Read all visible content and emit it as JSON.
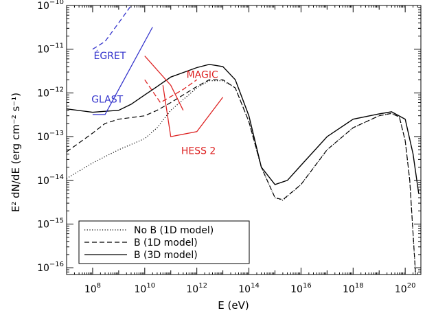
{
  "chart_data": {
    "type": "line",
    "xlabel": "E (eV)",
    "ylabel": "E² dN/dE (erg cm⁻² s⁻¹)",
    "xscale": "log",
    "yscale": "log",
    "xlim": [
      10000000.0,
      4e+20
    ],
    "ylim": [
      7e-17,
      1e-10
    ],
    "x_ticks": [
      {
        "value": 100000000.0,
        "base": "10",
        "exp": "8"
      },
      {
        "value": 10000000000.0,
        "base": "10",
        "exp": "10"
      },
      {
        "value": 1000000000000.0,
        "base": "10",
        "exp": "12"
      },
      {
        "value": 100000000000000.0,
        "base": "10",
        "exp": "14"
      },
      {
        "value": 1e+16,
        "base": "10",
        "exp": "16"
      },
      {
        "value": 1e+18,
        "base": "10",
        "exp": "18"
      },
      {
        "value": 1e+20,
        "base": "10",
        "exp": "20"
      }
    ],
    "y_ticks": [
      {
        "value": 1e-10,
        "base": "10",
        "exp": "−10"
      },
      {
        "value": 1e-11,
        "base": "10",
        "exp": "−11"
      },
      {
        "value": 1e-12,
        "base": "10",
        "exp": "−12"
      },
      {
        "value": 1e-13,
        "base": "10",
        "exp": "−13"
      },
      {
        "value": 1e-14,
        "base": "10",
        "exp": "−14"
      },
      {
        "value": 1e-15,
        "base": "10",
        "exp": "−15"
      },
      {
        "value": 1e-16,
        "base": "10",
        "exp": "−16"
      }
    ],
    "legend": {
      "placement": "bottom-left",
      "entries": [
        {
          "name": "No B (1D model)",
          "style": "dotted"
        },
        {
          "name": "B (1D model)",
          "style": "dashed"
        },
        {
          "name": "B (3D model)",
          "style": "solid"
        }
      ]
    },
    "series": [
      {
        "name": "No B (1D model)",
        "style": "dotted",
        "color": "#000000",
        "points": [
          [
            10000000.0,
            1.1e-14
          ],
          [
            100000000.0,
            2.5e-14
          ],
          [
            1000000000.0,
            5e-14
          ],
          [
            10000000000.0,
            9e-14
          ],
          [
            30000000000.0,
            1.6e-13
          ],
          [
            100000000000.0,
            4e-13
          ],
          [
            1000000000000.0,
            1.3e-12
          ],
          [
            3000000000000.0,
            1.9e-12
          ],
          [
            10000000000000.0,
            1.9e-12
          ],
          [
            30000000000000.0,
            1.3e-12
          ],
          [
            100000000000000.0,
            2.2e-13
          ],
          [
            300000000000000.0,
            2e-14
          ],
          [
            1000000000000000.0,
            4e-15
          ],
          [
            2000000000000000.0,
            3.5e-15
          ],
          [
            1e+16,
            8e-15
          ],
          [
            1e+17,
            5e-14
          ],
          [
            1e+18,
            1.6e-13
          ],
          [
            1e+19,
            3e-13
          ],
          [
            3e+19,
            3.4e-13
          ],
          [
            6e+19,
            2.8e-13
          ],
          [
            1e+20,
            8e-14
          ],
          [
            1.5e+20,
            1e-14
          ],
          [
            2.5e+20,
            7e-17
          ]
        ]
      },
      {
        "name": "B (1D model)",
        "style": "dashed",
        "color": "#000000",
        "points": [
          [
            10000000.0,
            4.5e-14
          ],
          [
            100000000.0,
            1.2e-13
          ],
          [
            300000000.0,
            2e-13
          ],
          [
            1000000000.0,
            2.5e-13
          ],
          [
            10000000000.0,
            3e-13
          ],
          [
            30000000000.0,
            4e-13
          ],
          [
            100000000000.0,
            6e-13
          ],
          [
            1000000000000.0,
            1.4e-12
          ],
          [
            3000000000000.0,
            2e-12
          ],
          [
            10000000000000.0,
            2e-12
          ],
          [
            30000000000000.0,
            1.3e-12
          ],
          [
            100000000000000.0,
            2.2e-13
          ],
          [
            300000000000000.0,
            2e-14
          ],
          [
            1000000000000000.0,
            4e-15
          ],
          [
            2000000000000000.0,
            3.6e-15
          ],
          [
            1e+16,
            8e-15
          ],
          [
            1e+17,
            5e-14
          ],
          [
            1e+18,
            1.6e-13
          ],
          [
            1e+19,
            3e-13
          ],
          [
            3e+19,
            3.4e-13
          ],
          [
            6e+19,
            2.8e-13
          ],
          [
            1e+20,
            8e-14
          ],
          [
            1.5e+20,
            1e-14
          ],
          [
            2.5e+20,
            7e-17
          ]
        ]
      },
      {
        "name": "B (3D model)",
        "style": "solid",
        "color": "#000000",
        "points": [
          [
            10000000.0,
            4.3e-13
          ],
          [
            100000000.0,
            3.6e-13
          ],
          [
            1000000000.0,
            4e-13
          ],
          [
            3000000000.0,
            5.5e-13
          ],
          [
            10000000000.0,
            9e-13
          ],
          [
            30000000000.0,
            1.4e-12
          ],
          [
            100000000000.0,
            2.3e-12
          ],
          [
            1000000000000.0,
            3.8e-12
          ],
          [
            3000000000000.0,
            4.5e-12
          ],
          [
            10000000000000.0,
            4e-12
          ],
          [
            30000000000000.0,
            2e-12
          ],
          [
            100000000000000.0,
            3e-13
          ],
          [
            300000000000000.0,
            2e-14
          ],
          [
            1000000000000000.0,
            8e-15
          ],
          [
            3000000000000000.0,
            1e-14
          ],
          [
            1e+16,
            2.2e-14
          ],
          [
            1e+17,
            1e-13
          ],
          [
            1e+18,
            2.5e-13
          ],
          [
            1e+19,
            3.3e-13
          ],
          [
            3e+19,
            3.7e-13
          ],
          [
            1e+20,
            2.5e-13
          ],
          [
            2e+20,
            4e-14
          ],
          [
            3.3e+20,
            5e-15
          ]
        ]
      }
    ],
    "instruments": [
      {
        "name": "EGRET",
        "label": "ÉGRET",
        "color": "#3333cc",
        "style": "dashed",
        "points": [
          [
            100000000.0,
            1e-11
          ],
          [
            300000000.0,
            1.5e-11
          ],
          [
            1000000000.0,
            4e-11
          ],
          [
            3000000000.0,
            1e-10
          ]
        ]
      },
      {
        "name": "GLAST",
        "label": "GLAST",
        "color": "#3333cc",
        "style": "solid",
        "points": [
          [
            100000000.0,
            3.2e-13
          ],
          [
            300000000.0,
            3.2e-13
          ],
          [
            20000000000.0,
            3.2e-11
          ]
        ]
      },
      {
        "name": "MAGIC",
        "label": "MAGIC",
        "color": "#dd2222",
        "style": "solid",
        "points": [
          [
            10000000000.0,
            7e-12
          ],
          [
            100000000000.0,
            1.5e-12
          ],
          [
            300000000000.0,
            4e-13
          ]
        ]
      },
      {
        "name": "MAGIC-dashed",
        "label": "",
        "color": "#dd2222",
        "style": "dashed",
        "points": [
          [
            10000000000.0,
            2e-12
          ],
          [
            40000000000.0,
            6e-13
          ],
          [
            300000000000.0,
            1.2e-12
          ],
          [
            1000000000000.0,
            2e-12
          ]
        ]
      },
      {
        "name": "HESS 2",
        "label": "HESS 2",
        "color": "#dd2222",
        "style": "solid",
        "points": [
          [
            50000000000.0,
            1.5e-12
          ],
          [
            100000000000.0,
            1e-13
          ],
          [
            1000000000000.0,
            1.3e-13
          ],
          [
            10000000000000.0,
            8e-13
          ]
        ]
      }
    ],
    "annotations": [
      {
        "text": "ÉGRET",
        "color": "#3333cc",
        "at": [
          110000000.0,
          6e-12
        ]
      },
      {
        "text": "GLAST",
        "color": "#3333cc",
        "at": [
          90000000.0,
          6e-13
        ]
      },
      {
        "text": "MAGIC",
        "color": "#dd2222",
        "at": [
          400000000000.0,
          2.2e-12
        ]
      },
      {
        "text": "HESS 2",
        "color": "#dd2222",
        "at": [
          250000000000.0,
          4e-14
        ]
      }
    ],
    "grid": false
  }
}
